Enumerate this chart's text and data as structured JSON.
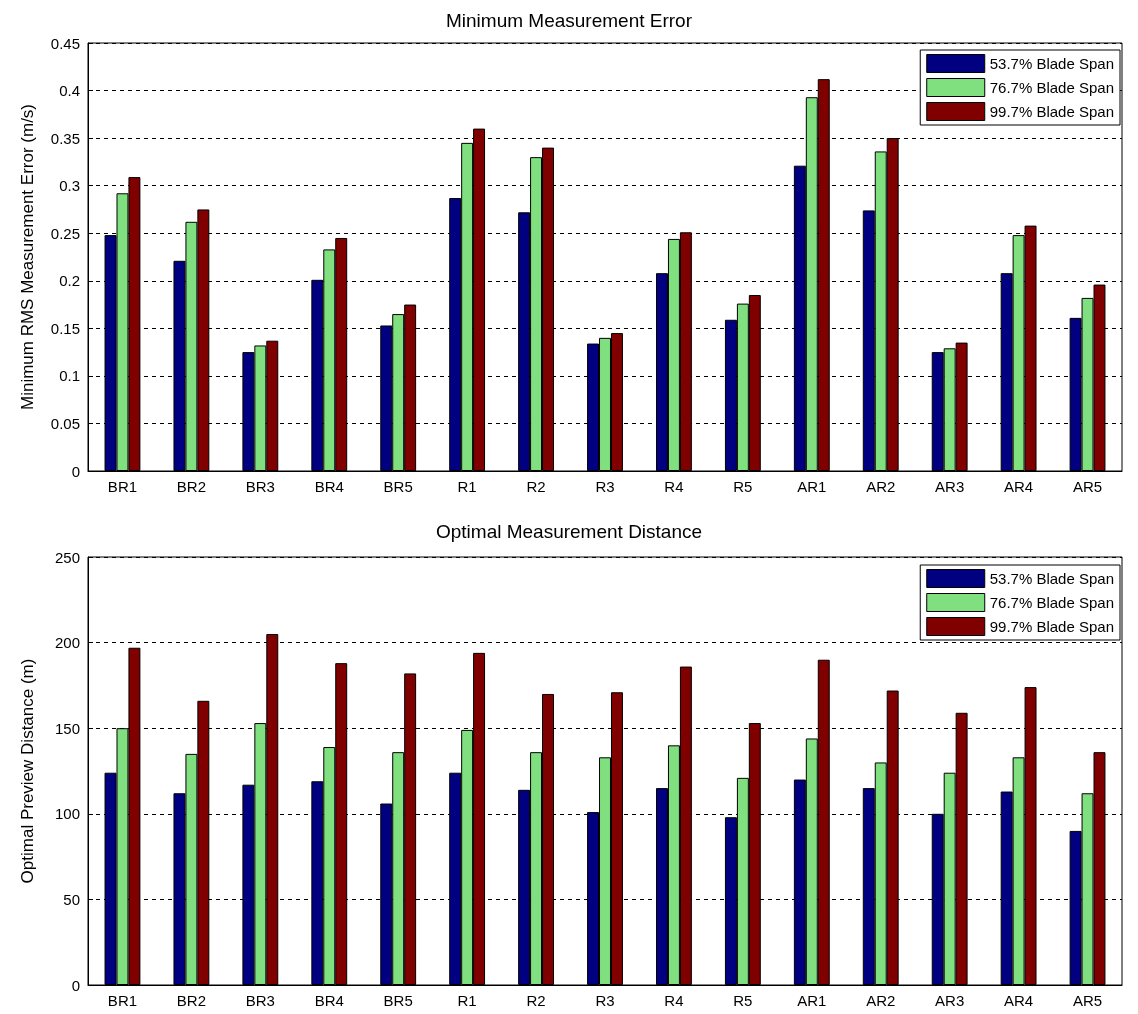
{
  "chart_data": [
    {
      "type": "bar",
      "title": "Minimum Measurement Error",
      "ylabel": "Minimum RMS Measurement Error (m/s)",
      "categories": [
        "BR1",
        "BR2",
        "BR3",
        "BR4",
        "BR5",
        "R1",
        "R2",
        "R3",
        "R4",
        "R5",
        "AR1",
        "AR2",
        "AR3",
        "AR4",
        "AR5"
      ],
      "series": [
        {
          "name": "53.7% Blade Span",
          "color": "#000080",
          "values": [
            0.248,
            0.221,
            0.125,
            0.201,
            0.153,
            0.287,
            0.272,
            0.134,
            0.208,
            0.159,
            0.321,
            0.274,
            0.125,
            0.208,
            0.161
          ]
        },
        {
          "name": "76.7% Blade Span",
          "color": "#80e080",
          "values": [
            0.292,
            0.262,
            0.132,
            0.233,
            0.165,
            0.345,
            0.33,
            0.14,
            0.244,
            0.176,
            0.393,
            0.336,
            0.129,
            0.248,
            0.182
          ]
        },
        {
          "name": "99.7% Blade Span",
          "color": "#800000",
          "values": [
            0.309,
            0.275,
            0.137,
            0.245,
            0.175,
            0.36,
            0.34,
            0.145,
            0.251,
            0.185,
            0.412,
            0.35,
            0.135,
            0.258,
            0.196
          ]
        }
      ],
      "ylim": [
        0,
        0.45
      ],
      "yticks": [
        0,
        0.05,
        0.1,
        0.15,
        0.2,
        0.25,
        0.3,
        0.35,
        0.4,
        0.45
      ],
      "grid": "y",
      "legend": "top right"
    },
    {
      "type": "bar",
      "title": "Optimal Measurement Distance",
      "ylabel": "Optimal Preview Distance (m)",
      "categories": [
        "BR1",
        "BR2",
        "BR3",
        "BR4",
        "BR5",
        "R1",
        "R2",
        "R3",
        "R4",
        "R5",
        "AR1",
        "AR2",
        "AR3",
        "AR4",
        "AR5"
      ],
      "series": [
        {
          "name": "53.7% Blade Span",
          "color": "#000080",
          "values": [
            124,
            112,
            117,
            119,
            106,
            124,
            114,
            101,
            115,
            98,
            120,
            115,
            100,
            113,
            90
          ]
        },
        {
          "name": "76.7% Blade Span",
          "color": "#80e080",
          "values": [
            150,
            135,
            153,
            139,
            136,
            149,
            136,
            133,
            140,
            121,
            144,
            130,
            124,
            133,
            112
          ]
        },
        {
          "name": "99.7% Blade Span",
          "color": "#800000",
          "values": [
            197,
            166,
            205,
            188,
            182,
            194,
            170,
            171,
            186,
            153,
            190,
            172,
            159,
            174,
            136
          ]
        }
      ],
      "ylim": [
        0,
        250
      ],
      "yticks": [
        0,
        50,
        100,
        150,
        200,
        250
      ],
      "grid": "y",
      "legend": "top right"
    }
  ]
}
